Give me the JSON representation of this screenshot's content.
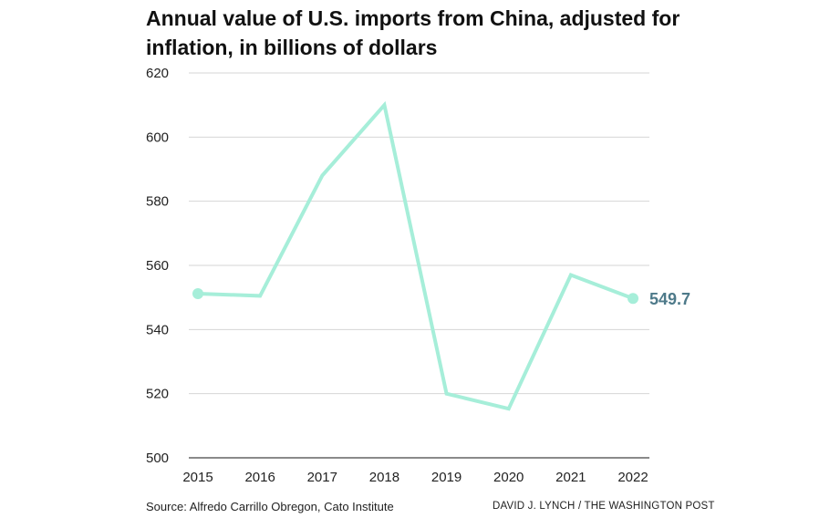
{
  "chart_data": {
    "type": "line",
    "title": "Annual value of U.S. imports from China, adjusted for inflation, in billions of dollars",
    "x": [
      "2015",
      "2016",
      "2017",
      "2018",
      "2019",
      "2020",
      "2021",
      "2022"
    ],
    "series": [
      {
        "values": [
          551.2,
          550.5,
          588,
          610,
          520,
          515.3,
          557,
          549.7
        ]
      }
    ],
    "yticks": [
      "620",
      "600",
      "580",
      "560",
      "540",
      "520",
      "500"
    ],
    "ylim": [
      500,
      620
    ],
    "end_label": "549.7",
    "grid": true,
    "colors": {
      "line": "#a6eed9",
      "label": "#4e7a8a",
      "grid": "#d6d6d6"
    }
  },
  "footer": {
    "source": "Source: Alfredo Carrillo Obregon, Cato Institute",
    "credit": "DAVID J. LYNCH / THE WASHINGTON POST"
  }
}
